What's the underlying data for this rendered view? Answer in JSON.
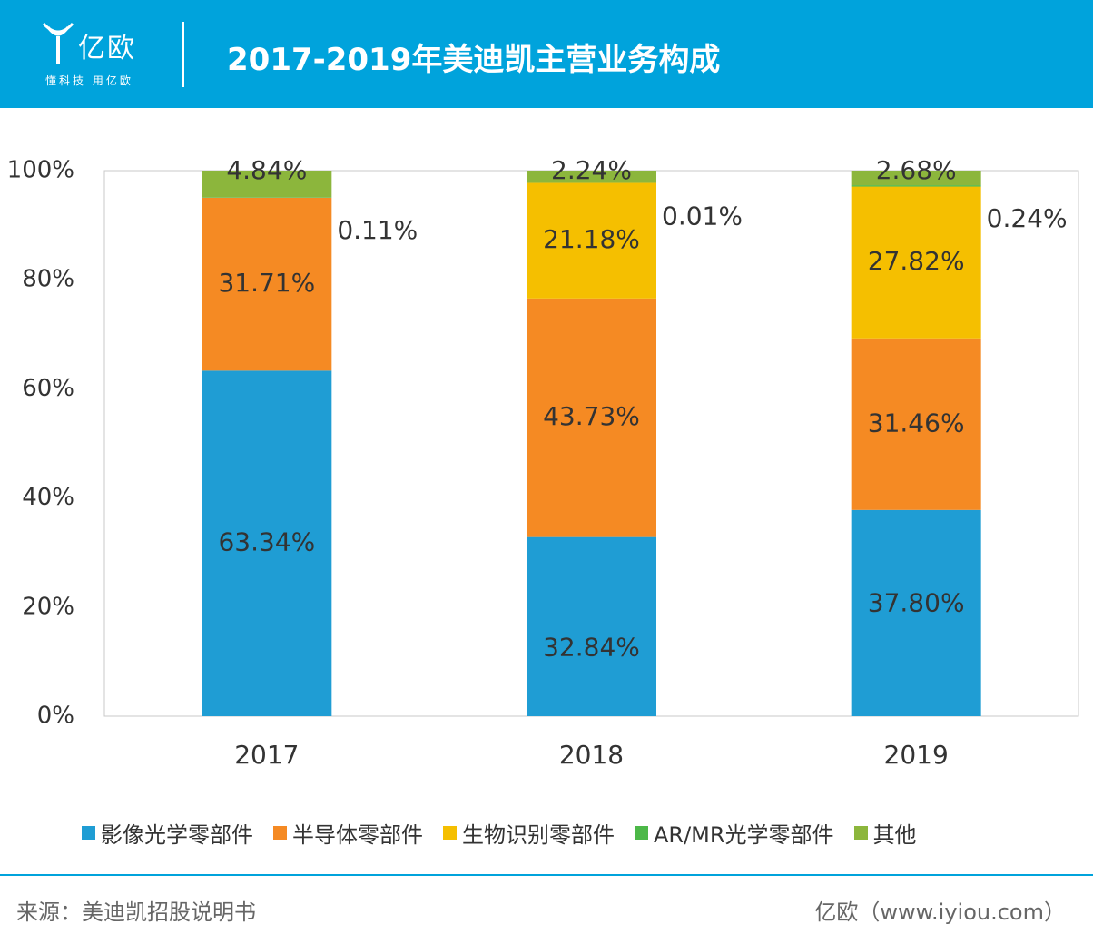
{
  "header": {
    "logo_name": "亿欧",
    "logo_slogan": "懂科技 用亿欧",
    "title": "2017-2019年美迪凯主营业务构成",
    "background_color": "#00a3dc"
  },
  "chart_data": {
    "type": "bar",
    "stacked": true,
    "title": "2017-2019年美迪凯主营业务构成",
    "categories": [
      "2017",
      "2018",
      "2019"
    ],
    "ylim": [
      0,
      100
    ],
    "yticks": [
      "0%",
      "20%",
      "40%",
      "60%",
      "80%",
      "100%"
    ],
    "grid": false,
    "legend_position": "bottom",
    "series": [
      {
        "name": "影像光学零部件",
        "color": "#1f9dd4",
        "values": [
          63.34,
          32.84,
          37.8
        ],
        "labels": [
          "63.34%",
          "32.84%",
          "37.80%"
        ]
      },
      {
        "name": "半导体零部件",
        "color": "#f58a23",
        "values": [
          31.71,
          43.73,
          31.46
        ],
        "labels": [
          "31.71%",
          "43.73%",
          "31.46%"
        ]
      },
      {
        "name": "生物识别零部件",
        "color": "#f5bf00",
        "values": [
          0,
          21.18,
          27.82
        ],
        "labels": [
          "",
          "21.18%",
          "27.82%"
        ]
      },
      {
        "name": "AR/MR光学零部件",
        "color": "#4cb848",
        "values": [
          0.11,
          0.01,
          0.24
        ],
        "labels": [
          "0.11%",
          "0.01%",
          "0.24%"
        ]
      },
      {
        "name": "其他",
        "color": "#8cb63c",
        "values": [
          4.84,
          2.24,
          2.68
        ],
        "labels": [
          "4.84%",
          "2.24%",
          "2.68%"
        ]
      }
    ]
  },
  "footer": {
    "source": "来源：美迪凯招股说明书",
    "credit": "亿欧（www.iyiou.com）"
  }
}
